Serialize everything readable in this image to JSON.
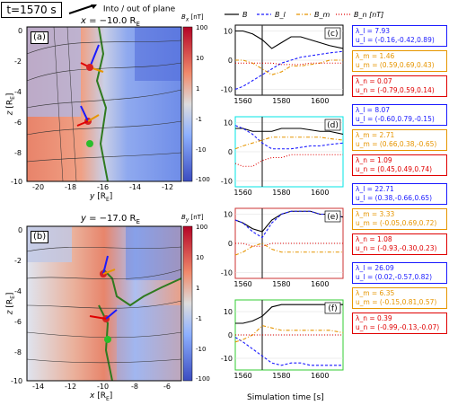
{
  "time_label": "t=1570 s",
  "legend_top": "Into / out of plane",
  "legend_right": {
    "b": "B",
    "bl": "B_l",
    "bm": "B_m",
    "bn": "B_n [nT]"
  },
  "panel_a": {
    "title": "x = −10.0 R_E",
    "label": "(a)",
    "xlabel": "y [R_E]",
    "ylabel": "z [R_E]",
    "xticks": [
      "-20",
      "-18",
      "-16",
      "-14",
      "-12"
    ],
    "yticks": [
      "0",
      "-2",
      "-4",
      "-6",
      "-8",
      "-10"
    ],
    "cb_title": "B_x [nT]",
    "cb_ticks": [
      "100",
      "10",
      "1",
      "-1",
      "-10",
      "-100"
    ]
  },
  "panel_b": {
    "title": "y = −17.0 R_E",
    "label": "(b)",
    "xlabel": "x [R_E]",
    "ylabel": "z [R_E]",
    "xticks": [
      "-14",
      "-12",
      "-10",
      "-8",
      "-6"
    ],
    "yticks": [
      "0",
      "-2",
      "-4",
      "-6",
      "-8",
      "-10"
    ],
    "cb_title": "B_y [nT]",
    "cb_ticks": [
      "100",
      "10",
      "1",
      "-1",
      "-10",
      "-100"
    ]
  },
  "colors": {
    "b": "#000000",
    "l": "#1a1aff",
    "m": "#e69500",
    "n": "#e00000",
    "c_frame": "#000000",
    "d_frame": "#00e5e5",
    "e_frame": "#cc3333",
    "f_frame": "#33cc33"
  },
  "line_panels": [
    {
      "label": "(c)",
      "lambda_l": "λ_l = 7.93",
      "u_l": "u_l = (-0.16,-0.42,0.89)",
      "lambda_m": "λ_m = 1.46",
      "u_m": "u_m = (0.59,0.69,0.43)",
      "lambda_n": "λ_n = 0.07",
      "u_n": "u_n = (-0.79,0.59,0.14)"
    },
    {
      "label": "(d)",
      "lambda_l": "λ_l = 8.07",
      "u_l": "u_l = (-0.60,0.79,-0.15)",
      "lambda_m": "λ_m = 2.71",
      "u_m": "u_m = (0.66,0.38,-0.65)",
      "lambda_n": "λ_n = 1.09",
      "u_n": "u_n = (0.45,0.49,0.74)"
    },
    {
      "label": "(e)",
      "lambda_l": "λ_l = 22.71",
      "u_l": "u_l = (0.38,-0.66,0.65)",
      "lambda_m": "λ_m = 3.33",
      "u_m": "u_m = (-0.05,0.69,0.72)",
      "lambda_n": "λ_n = 1.08",
      "u_n": "u_n = (-0.93,-0.30,0.23)"
    },
    {
      "label": "(f)",
      "lambda_l": "λ_l = 26.09",
      "u_l": "u_l = (0.02,-0.57,0.82)",
      "lambda_m": "λ_m = 6.35",
      "u_m": "u_m = (-0.15,0.81,0.57)",
      "lambda_n": "λ_n = 0.39",
      "u_n": "u_n = (-0.99,-0.13,-0.07)"
    }
  ],
  "line_xlabel": "Simulation time [s]",
  "chart_data": [
    {
      "type": "line",
      "panel": "(c)",
      "x": [
        1556,
        1560,
        1565,
        1570,
        1575,
        1580,
        1585,
        1590,
        1595,
        1600,
        1605,
        1612
      ],
      "xlim": [
        1556,
        1612
      ],
      "ylim": [
        -12,
        12
      ],
      "vline": 1570,
      "yticks": [
        "10",
        "0",
        "-10"
      ],
      "xticks": [
        "1560",
        "1580",
        "1600"
      ],
      "series": [
        {
          "name": "B",
          "values": [
            10,
            10,
            9,
            7,
            4,
            6,
            8,
            8,
            7,
            6,
            5,
            4
          ]
        },
        {
          "name": "B_l",
          "values": [
            -10,
            -9,
            -7,
            -5,
            -3,
            -1,
            0,
            1,
            1.5,
            2,
            2.5,
            3
          ]
        },
        {
          "name": "B_m",
          "values": [
            0,
            0,
            -1,
            -3,
            -5,
            -4,
            -2,
            -2,
            -1.5,
            -1,
            0,
            0
          ]
        },
        {
          "name": "B_n",
          "values": [
            -1,
            -1,
            -1,
            -1,
            -1,
            -1.5,
            -1.5,
            -1.5,
            -1,
            -1,
            -1,
            -1
          ]
        }
      ]
    },
    {
      "type": "line",
      "panel": "(d)",
      "x": [
        1556,
        1560,
        1565,
        1570,
        1575,
        1580,
        1585,
        1590,
        1595,
        1600,
        1605,
        1612
      ],
      "xlim": [
        1556,
        1612
      ],
      "ylim": [
        -12,
        12
      ],
      "vline": 1570,
      "yticks": [
        "10",
        "0",
        "-10"
      ],
      "xticks": [
        "1560",
        "1580",
        "1600"
      ],
      "series": [
        {
          "name": "B",
          "values": [
            8,
            8,
            7,
            7,
            7,
            8,
            8,
            8,
            7.5,
            7,
            7,
            6
          ]
        },
        {
          "name": "B_l",
          "values": [
            9,
            8,
            6,
            3,
            1,
            1,
            1,
            1.5,
            2,
            2,
            2.5,
            3
          ]
        },
        {
          "name": "B_m",
          "values": [
            1,
            2,
            3,
            4,
            5,
            5,
            5,
            5,
            5,
            5,
            4.5,
            4
          ]
        },
        {
          "name": "B_n",
          "values": [
            -4,
            -5,
            -5,
            -3,
            -2,
            -2,
            -1,
            -1,
            -1,
            -1,
            -1,
            -1
          ]
        }
      ]
    },
    {
      "type": "line",
      "panel": "(e)",
      "x": [
        1556,
        1560,
        1565,
        1570,
        1575,
        1580,
        1585,
        1590,
        1595,
        1600,
        1605,
        1612
      ],
      "xlim": [
        1556,
        1612
      ],
      "ylim": [
        -12,
        12
      ],
      "vline": 1570,
      "yticks": [
        "10",
        "0",
        "-10"
      ],
      "xticks": [
        "1560",
        "1580",
        "1600"
      ],
      "series": [
        {
          "name": "B",
          "values": [
            8,
            7,
            5,
            4,
            8,
            10,
            11,
            11,
            11,
            10,
            10,
            9
          ]
        },
        {
          "name": "B_l",
          "values": [
            8,
            7,
            4,
            2,
            7,
            10,
            11,
            11,
            11,
            10,
            10,
            9
          ]
        },
        {
          "name": "B_m",
          "values": [
            -4,
            -3,
            -1,
            0,
            -2,
            -3,
            -3,
            -3,
            -3,
            -3,
            -3,
            -3
          ]
        },
        {
          "name": "B_n",
          "values": [
            0,
            0,
            -1,
            -1,
            0,
            0,
            0,
            0,
            0,
            0,
            0,
            0
          ]
        }
      ]
    },
    {
      "type": "line",
      "panel": "(f)",
      "x": [
        1556,
        1560,
        1565,
        1570,
        1575,
        1580,
        1585,
        1590,
        1595,
        1600,
        1605,
        1612
      ],
      "xlim": [
        1556,
        1612
      ],
      "ylim": [
        -15,
        15
      ],
      "vline": 1570,
      "yticks": [
        "10",
        "0",
        "-10"
      ],
      "xticks": [
        "1560",
        "1580",
        "1600"
      ],
      "series": [
        {
          "name": "B",
          "values": [
            5,
            5,
            6,
            8,
            12,
            13,
            13,
            13,
            13,
            13,
            13,
            13
          ]
        },
        {
          "name": "B_l",
          "values": [
            -1,
            -3,
            -6,
            -9,
            -12,
            -13,
            -12,
            -12,
            -13,
            -13,
            -13,
            -13
          ]
        },
        {
          "name": "B_m",
          "values": [
            -3,
            -2,
            0,
            4,
            3,
            2,
            2,
            2,
            2,
            2,
            2,
            1
          ]
        },
        {
          "name": "B_n",
          "values": [
            0,
            0,
            0,
            0,
            0,
            0,
            0,
            0,
            0,
            0,
            0,
            0
          ]
        }
      ]
    }
  ]
}
